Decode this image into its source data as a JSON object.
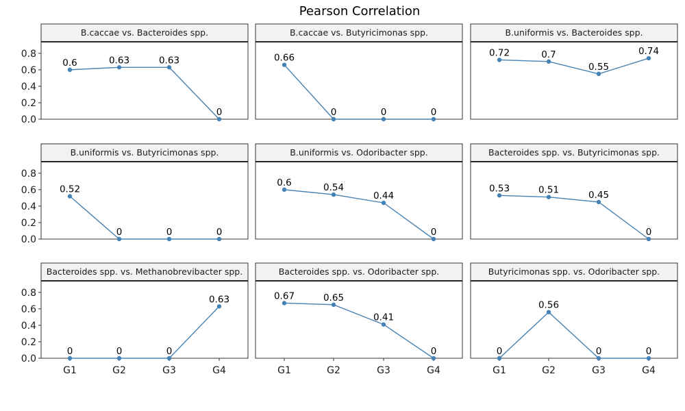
{
  "chart_data": {
    "type": "line",
    "title": "Pearson Correlation",
    "categories": [
      "G1",
      "G2",
      "G3",
      "G4"
    ],
    "y_ticks": [
      "0.0",
      "0.2",
      "0.4",
      "0.6",
      "0.8"
    ],
    "ylim": [
      0,
      0.94
    ],
    "grid": false,
    "color": "#4682B4",
    "panels": [
      {
        "title": "B.caccae vs. Bacteroides spp.",
        "values": [
          0.6,
          0.63,
          0.63,
          0
        ],
        "labels": [
          "0.6",
          "0.63",
          "0.63",
          "0"
        ]
      },
      {
        "title": "B.caccae vs. Butyricimonas spp.",
        "values": [
          0.66,
          0,
          0,
          0
        ],
        "labels": [
          "0.66",
          "0",
          "0",
          "0"
        ]
      },
      {
        "title": "B.uniformis vs. Bacteroides spp.",
        "values": [
          0.72,
          0.7,
          0.55,
          0.74
        ],
        "labels": [
          "0.72",
          "0.7",
          "0.55",
          "0.74"
        ]
      },
      {
        "title": "B.uniformis vs. Butyricimonas spp.",
        "values": [
          0.52,
          0,
          0,
          0
        ],
        "labels": [
          "0.52",
          "0",
          "0",
          "0"
        ]
      },
      {
        "title": "B.uniformis vs. Odoribacter spp.",
        "values": [
          0.6,
          0.54,
          0.44,
          0
        ],
        "labels": [
          "0.6",
          "0.54",
          "0.44",
          "0"
        ]
      },
      {
        "title": "Bacteroides spp. vs. Butyricimonas spp.",
        "values": [
          0.53,
          0.51,
          0.45,
          0
        ],
        "labels": [
          "0.53",
          "0.51",
          "0.45",
          "0"
        ]
      },
      {
        "title": "Bacteroides spp. vs. Methanobrevibacter spp.",
        "values": [
          0,
          0,
          0,
          0.63
        ],
        "labels": [
          "0",
          "0",
          "0",
          "0.63"
        ]
      },
      {
        "title": "Bacteroides spp. vs. Odoribacter spp.",
        "values": [
          0.67,
          0.65,
          0.41,
          0
        ],
        "labels": [
          "0.67",
          "0.65",
          "0.41",
          "0"
        ]
      },
      {
        "title": "Butyricimonas spp. vs. Odoribacter spp.",
        "values": [
          0,
          0.56,
          0,
          0
        ],
        "labels": [
          "0",
          "0.56",
          "0",
          "0"
        ]
      }
    ]
  }
}
